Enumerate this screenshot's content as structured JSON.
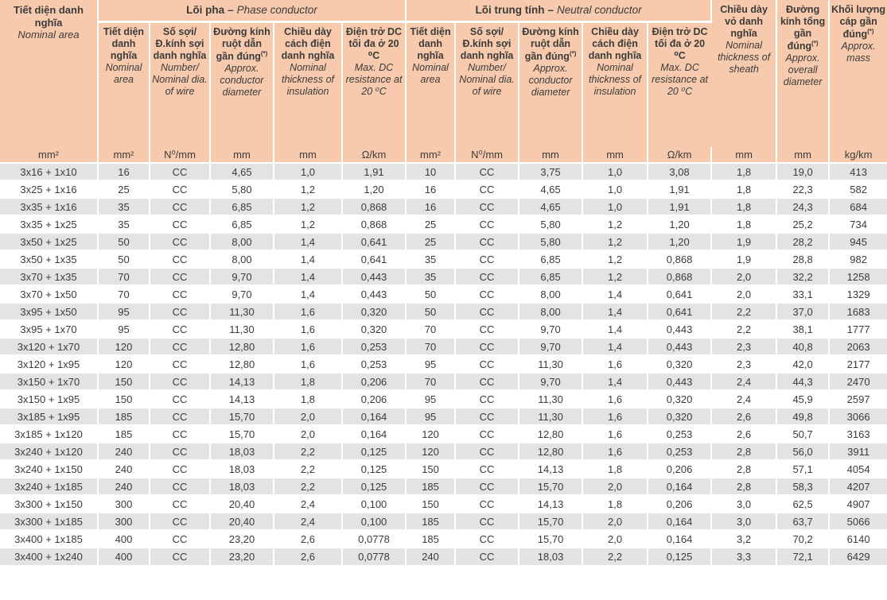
{
  "colors": {
    "header_bg": "#F7CAAE",
    "row_alt": "#E3E3E4",
    "row_base": "#FFFFFF",
    "text": "#3B3B3A",
    "separator": "#FFFFFF"
  },
  "header": {
    "col_area": {
      "vi": "Tiết diện danh nghĩa",
      "en": "Nominal area"
    },
    "groups": [
      {
        "vi": "Lõi pha",
        "sep": "–",
        "en": "Phase conductor"
      },
      {
        "vi": "Lõi trung tính",
        "sep": "–",
        "en": "Neutral conductor"
      }
    ],
    "subcols": [
      {
        "vi": "Tiết diện danh nghĩa",
        "en": "Nominal area"
      },
      {
        "vi": "Số sợi/ Đ.kính sợi danh nghĩa",
        "en": "Number/ Nominal dia. of wire"
      },
      {
        "vi": "Đường kính ruột dẫn gần đúng",
        "sup": "(*)",
        "en": "Approx. conductor diameter"
      },
      {
        "vi": "Chiều dày cách điện danh nghĩa",
        "en": "Nominal thickness of insulation"
      },
      {
        "vi": "Điện trở DC tối đa ở 20 ⁰C",
        "en": "Max. DC resistance at 20 ⁰C"
      }
    ],
    "col_sheath": {
      "vi": "Chiều dày vỏ danh nghĩa",
      "en": "Nominal thickness of sheath"
    },
    "col_overall": {
      "vi": "Đường kính tổng gần đúng",
      "sup": "(*)",
      "en": "Approx. overall diameter"
    },
    "col_mass": {
      "vi": "Khối lượng cáp gần đúng",
      "sup": "(*)",
      "en": "Approx. mass"
    }
  },
  "table": {
    "units": [
      "mm²",
      "mm²",
      "N⁰/mm",
      "mm",
      "mm",
      "Ω/km",
      "mm²",
      "N⁰/mm",
      "mm",
      "mm",
      "Ω/km",
      "mm",
      "mm",
      "kg/km"
    ],
    "rows": [
      [
        "3x16 + 1x10",
        "16",
        "CC",
        "4,65",
        "1,0",
        "1,91",
        "10",
        "CC",
        "3,75",
        "1,0",
        "3,08",
        "1,8",
        "19,0",
        "413"
      ],
      [
        "3x25 + 1x16",
        "25",
        "CC",
        "5,80",
        "1,2",
        "1,20",
        "16",
        "CC",
        "4,65",
        "1,0",
        "1,91",
        "1,8",
        "22,3",
        "582"
      ],
      [
        "3x35 + 1x16",
        "35",
        "CC",
        "6,85",
        "1,2",
        "0,868",
        "16",
        "CC",
        "4,65",
        "1,0",
        "1,91",
        "1,8",
        "24,3",
        "684"
      ],
      [
        "3x35 + 1x25",
        "35",
        "CC",
        "6,85",
        "1,2",
        "0,868",
        "25",
        "CC",
        "5,80",
        "1,2",
        "1,20",
        "1,8",
        "25,2",
        "734"
      ],
      [
        "3x50 + 1x25",
        "50",
        "CC",
        "8,00",
        "1,4",
        "0,641",
        "25",
        "CC",
        "5,80",
        "1,2",
        "1,20",
        "1,9",
        "28,2",
        "945"
      ],
      [
        "3x50 + 1x35",
        "50",
        "CC",
        "8,00",
        "1,4",
        "0,641",
        "35",
        "CC",
        "6,85",
        "1,2",
        "0,868",
        "1,9",
        "28,8",
        "982"
      ],
      [
        "3x70 + 1x35",
        "70",
        "CC",
        "9,70",
        "1,4",
        "0,443",
        "35",
        "CC",
        "6,85",
        "1,2",
        "0,868",
        "2,0",
        "32,2",
        "1258"
      ],
      [
        "3x70 + 1x50",
        "70",
        "CC",
        "9,70",
        "1,4",
        "0,443",
        "50",
        "CC",
        "8,00",
        "1,4",
        "0,641",
        "2,0",
        "33,1",
        "1329"
      ],
      [
        "3x95 + 1x50",
        "95",
        "CC",
        "11,30",
        "1,6",
        "0,320",
        "50",
        "CC",
        "8,00",
        "1,4",
        "0,641",
        "2,2",
        "37,0",
        "1683"
      ],
      [
        "3x95 + 1x70",
        "95",
        "CC",
        "11,30",
        "1,6",
        "0,320",
        "70",
        "CC",
        "9,70",
        "1,4",
        "0,443",
        "2,2",
        "38,1",
        "1777"
      ],
      [
        "3x120 + 1x70",
        "120",
        "CC",
        "12,80",
        "1,6",
        "0,253",
        "70",
        "CC",
        "9,70",
        "1,4",
        "0,443",
        "2,3",
        "40,8",
        "2063"
      ],
      [
        "3x120 + 1x95",
        "120",
        "CC",
        "12,80",
        "1,6",
        "0,253",
        "95",
        "CC",
        "11,30",
        "1,6",
        "0,320",
        "2,3",
        "42,0",
        "2177"
      ],
      [
        "3x150 + 1x70",
        "150",
        "CC",
        "14,13",
        "1,8",
        "0,206",
        "70",
        "CC",
        "9,70",
        "1,4",
        "0,443",
        "2,4",
        "44,3",
        "2470"
      ],
      [
        "3x150 + 1x95",
        "150",
        "CC",
        "14,13",
        "1,8",
        "0,206",
        "95",
        "CC",
        "11,30",
        "1,6",
        "0,320",
        "2,4",
        "45,9",
        "2597"
      ],
      [
        "3x185 + 1x95",
        "185",
        "CC",
        "15,70",
        "2,0",
        "0,164",
        "95",
        "CC",
        "11,30",
        "1,6",
        "0,320",
        "2,6",
        "49,8",
        "3066"
      ],
      [
        "3x185 + 1x120",
        "185",
        "CC",
        "15,70",
        "2,0",
        "0,164",
        "120",
        "CC",
        "12,80",
        "1,6",
        "0,253",
        "2,6",
        "50,7",
        "3163"
      ],
      [
        "3x240 + 1x120",
        "240",
        "CC",
        "18,03",
        "2,2",
        "0,125",
        "120",
        "CC",
        "12,80",
        "1,6",
        "0,253",
        "2,8",
        "56,0",
        "3911"
      ],
      [
        "3x240 + 1x150",
        "240",
        "CC",
        "18,03",
        "2,2",
        "0,125",
        "150",
        "CC",
        "14,13",
        "1,8",
        "0,206",
        "2,8",
        "57,1",
        "4054"
      ],
      [
        "3x240 + 1x185",
        "240",
        "CC",
        "18,03",
        "2,2",
        "0,125",
        "185",
        "CC",
        "15,70",
        "2,0",
        "0,164",
        "2,8",
        "58,3",
        "4207"
      ],
      [
        "3x300 + 1x150",
        "300",
        "CC",
        "20,40",
        "2,4",
        "0,100",
        "150",
        "CC",
        "14,13",
        "1,8",
        "0,206",
        "3,0",
        "62,5",
        "4907"
      ],
      [
        "3x300 + 1x185",
        "300",
        "CC",
        "20,40",
        "2,4",
        "0,100",
        "185",
        "CC",
        "15,70",
        "2,0",
        "0,164",
        "3,0",
        "63,7",
        "5066"
      ],
      [
        "3x400 + 1x185",
        "400",
        "CC",
        "23,20",
        "2,6",
        "0,0778",
        "185",
        "CC",
        "15,70",
        "2,0",
        "0,164",
        "3,2",
        "70,2",
        "6140"
      ],
      [
        "3x400 + 1x240",
        "400",
        "CC",
        "23,20",
        "2,6",
        "0,0778",
        "240",
        "CC",
        "18,03",
        "2,2",
        "0,125",
        "3,3",
        "72,1",
        "6429"
      ]
    ]
  }
}
